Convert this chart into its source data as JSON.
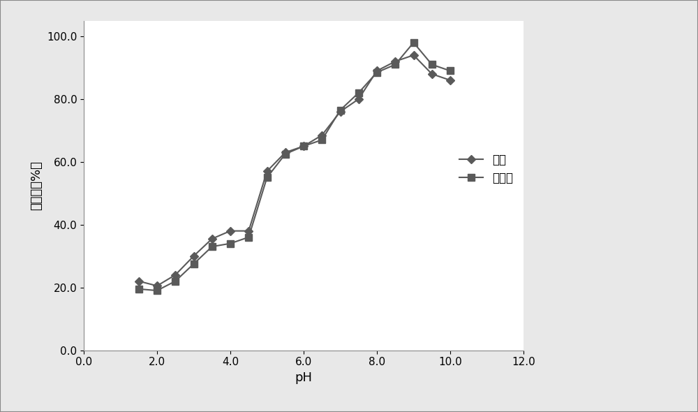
{
  "aniline_x": [
    1.5,
    2.0,
    2.5,
    3.0,
    3.5,
    4.0,
    4.5,
    5.0,
    5.5,
    6.0,
    6.5,
    7.0,
    7.5,
    8.0,
    8.5,
    9.0,
    9.5,
    10.0
  ],
  "aniline_y": [
    22.0,
    20.5,
    24.0,
    30.0,
    35.5,
    38.0,
    38.0,
    57.0,
    63.0,
    65.0,
    68.5,
    76.0,
    80.0,
    89.0,
    92.0,
    94.0,
    88.0,
    86.0
  ],
  "benzidine_x": [
    1.5,
    2.0,
    2.5,
    3.0,
    3.5,
    4.0,
    4.5,
    5.0,
    5.5,
    6.0,
    6.5,
    7.0,
    7.5,
    8.0,
    8.5,
    9.0,
    9.5,
    10.0
  ],
  "benzidine_y": [
    19.5,
    19.0,
    22.0,
    27.5,
    33.0,
    34.0,
    36.0,
    55.0,
    62.5,
    65.0,
    67.0,
    76.5,
    82.0,
    88.5,
    91.0,
    98.0,
    91.0,
    89.0
  ],
  "xlabel": "pH",
  "ylabel": "吸收率（%）",
  "legend_aniline": "苯胺",
  "legend_benzidine": "联苯胺",
  "line_color": "#5a5a5a",
  "xlim": [
    0.0,
    12.0
  ],
  "ylim": [
    0.0,
    105.0
  ],
  "xticks": [
    0.0,
    2.0,
    4.0,
    6.0,
    8.0,
    10.0,
    12.0
  ],
  "yticks": [
    0.0,
    20.0,
    40.0,
    60.0,
    80.0,
    100.0
  ],
  "background_color": "#e8e8e8",
  "plot_bg_color": "#ffffff",
  "border_color": "#aaaaaa"
}
